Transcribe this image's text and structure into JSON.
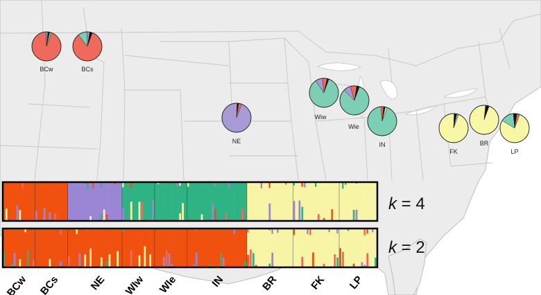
{
  "chart_data": {
    "type": "map-with-pies-and-structure-plots",
    "colors": {
      "red": "#ef6a5c",
      "purple": "#a99ad4",
      "teal": "#7ccfb5",
      "yellow": "#f7f7a6",
      "black": "#111111",
      "orange": "#f0510e",
      "stack_purple": "#9b86d6",
      "stack_teal": "#2fb385",
      "stack_yellow": "#f7f5a5"
    },
    "pies": [
      {
        "id": "BCw",
        "label": "BCw",
        "slices": [
          {
            "c": "red",
            "v": 0.94
          },
          {
            "c": "purple",
            "v": 0.02
          },
          {
            "c": "black",
            "v": 0.02
          },
          {
            "c": "teal",
            "v": 0.02
          }
        ]
      },
      {
        "id": "BCs",
        "label": "BCs",
        "slices": [
          {
            "c": "red",
            "v": 0.84
          },
          {
            "c": "teal",
            "v": 0.1
          },
          {
            "c": "purple",
            "v": 0.03
          },
          {
            "c": "black",
            "v": 0.03
          }
        ]
      },
      {
        "id": "NE",
        "label": "NE",
        "slices": [
          {
            "c": "purple",
            "v": 0.95
          },
          {
            "c": "black",
            "v": 0.02
          },
          {
            "c": "red",
            "v": 0.03
          }
        ]
      },
      {
        "id": "Wiw",
        "label": "Wiw",
        "slices": [
          {
            "c": "teal",
            "v": 0.85
          },
          {
            "c": "purple",
            "v": 0.08
          },
          {
            "c": "red",
            "v": 0.05
          },
          {
            "c": "black",
            "v": 0.02
          }
        ]
      },
      {
        "id": "Wie",
        "label": "Wie",
        "slices": [
          {
            "c": "teal",
            "v": 0.82
          },
          {
            "c": "purple",
            "v": 0.08
          },
          {
            "c": "red",
            "v": 0.07
          },
          {
            "c": "black",
            "v": 0.03
          }
        ]
      },
      {
        "id": "IN",
        "label": "IN",
        "slices": [
          {
            "c": "teal",
            "v": 0.93
          },
          {
            "c": "red",
            "v": 0.03
          },
          {
            "c": "black",
            "v": 0.02
          },
          {
            "c": "yellow",
            "v": 0.02
          }
        ]
      },
      {
        "id": "FK",
        "label": "FK",
        "slices": [
          {
            "c": "yellow",
            "v": 0.95
          },
          {
            "c": "black",
            "v": 0.03
          },
          {
            "c": "teal",
            "v": 0.02
          }
        ]
      },
      {
        "id": "BR",
        "label": "BR",
        "slices": [
          {
            "c": "yellow",
            "v": 0.96
          },
          {
            "c": "black",
            "v": 0.04
          }
        ]
      },
      {
        "id": "LP",
        "label": "LP",
        "slices": [
          {
            "c": "yellow",
            "v": 0.78
          },
          {
            "c": "teal",
            "v": 0.15
          },
          {
            "c": "black",
            "v": 0.04
          },
          {
            "c": "red",
            "v": 0.03
          }
        ]
      }
    ],
    "structure_k4": {
      "label_k": "k",
      "label_eq": " = 4",
      "groups": [
        {
          "pop": "BCw",
          "n": 12,
          "base": "orange"
        },
        {
          "pop": "BCs",
          "n": 12,
          "base": "orange"
        },
        {
          "pop": "NE",
          "n": 20,
          "base": "stack_purple"
        },
        {
          "pop": "WIw",
          "n": 12,
          "base": "stack_teal"
        },
        {
          "pop": "WIe",
          "n": 12,
          "base": "stack_teal"
        },
        {
          "pop": "IN",
          "n": 22,
          "base": "stack_teal"
        },
        {
          "pop": "BR",
          "n": 17,
          "base": "stack_yellow"
        },
        {
          "pop": "FK",
          "n": 17,
          "base": "stack_yellow"
        },
        {
          "pop": "LP",
          "n": 14,
          "base": "stack_yellow"
        }
      ]
    },
    "structure_k2": {
      "label_k": "k",
      "label_eq": " = 2",
      "groups": [
        {
          "pop": "BCw",
          "n": 12,
          "base": "orange"
        },
        {
          "pop": "BCs",
          "n": 12,
          "base": "orange"
        },
        {
          "pop": "NE",
          "n": 20,
          "base": "orange"
        },
        {
          "pop": "WIw",
          "n": 12,
          "base": "orange"
        },
        {
          "pop": "WIe",
          "n": 12,
          "base": "orange"
        },
        {
          "pop": "IN",
          "n": 22,
          "base": "orange"
        },
        {
          "pop": "BR",
          "n": 17,
          "base": "stack_yellow"
        },
        {
          "pop": "FK",
          "n": 17,
          "base": "stack_yellow"
        },
        {
          "pop": "LP",
          "n": 14,
          "base": "stack_yellow"
        }
      ]
    },
    "population_labels": [
      "BCw",
      "BCs",
      "NE",
      "WIw",
      "WIe",
      "IN",
      "BR",
      "FK",
      "LP"
    ]
  }
}
